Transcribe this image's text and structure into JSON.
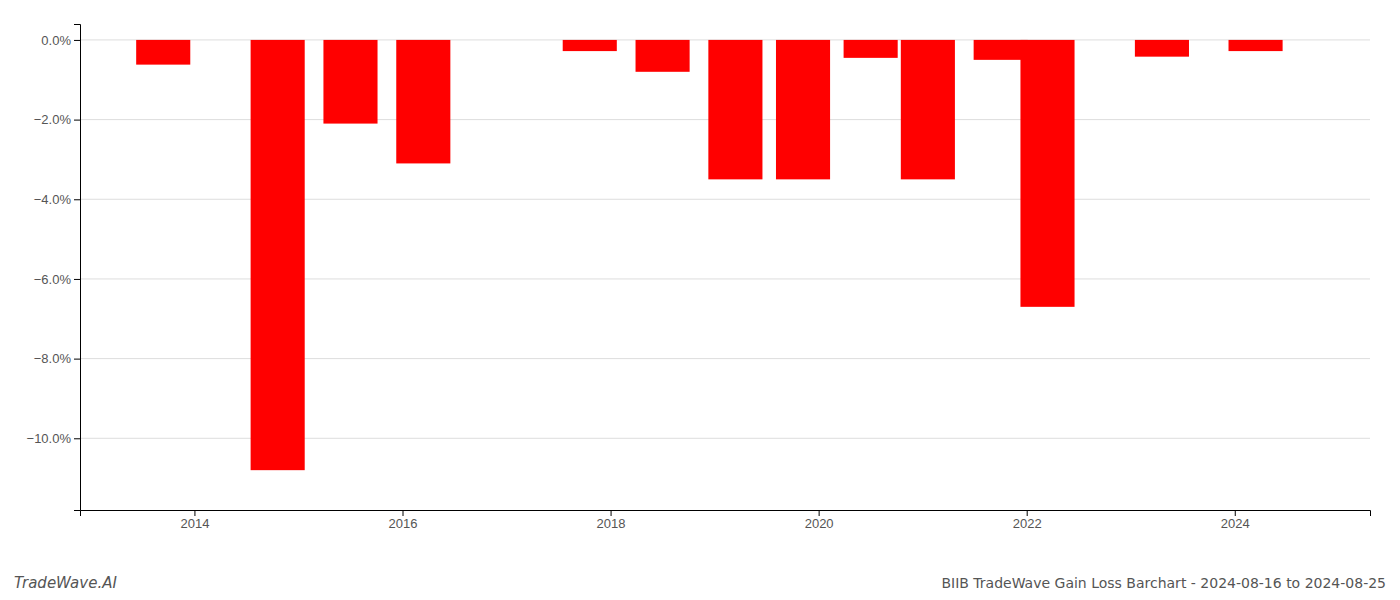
{
  "chart_data": {
    "type": "bar",
    "title": "BIIB TradeWave Gain Loss Barchart - 2024-08-16 to 2024-08-25",
    "annotations": [
      "TradeWave.AI"
    ],
    "x": [
      2013.7,
      2014.8,
      2015.5,
      2016.2,
      2017.8,
      2018.5,
      2019.2,
      2019.85,
      2020.5,
      2021.05,
      2021.75,
      2022.2,
      2023.3,
      2024.2
    ],
    "values": [
      -0.62,
      -10.8,
      -2.1,
      -3.1,
      -0.28,
      -0.8,
      -3.5,
      -3.5,
      -0.45,
      -3.5,
      -0.5,
      -6.7,
      -0.42,
      -0.28
    ],
    "color": "#ff0000",
    "xlim": [
      2012.9,
      2025.3
    ],
    "xticks": [
      2014,
      2016,
      2018,
      2020,
      2022,
      2024
    ],
    "ylim": [
      -11.8,
      0.4
    ],
    "yticks": [
      {
        "value": 0.0,
        "label": "0.0%"
      },
      {
        "value": -2.0,
        "label": "−2.0%"
      },
      {
        "value": -4.0,
        "label": "−4.0%"
      },
      {
        "value": -6.0,
        "label": "−6.0%"
      },
      {
        "value": -8.0,
        "label": "−8.0%"
      },
      {
        "value": -10.0,
        "label": "−10.0%"
      }
    ],
    "grid": true
  }
}
